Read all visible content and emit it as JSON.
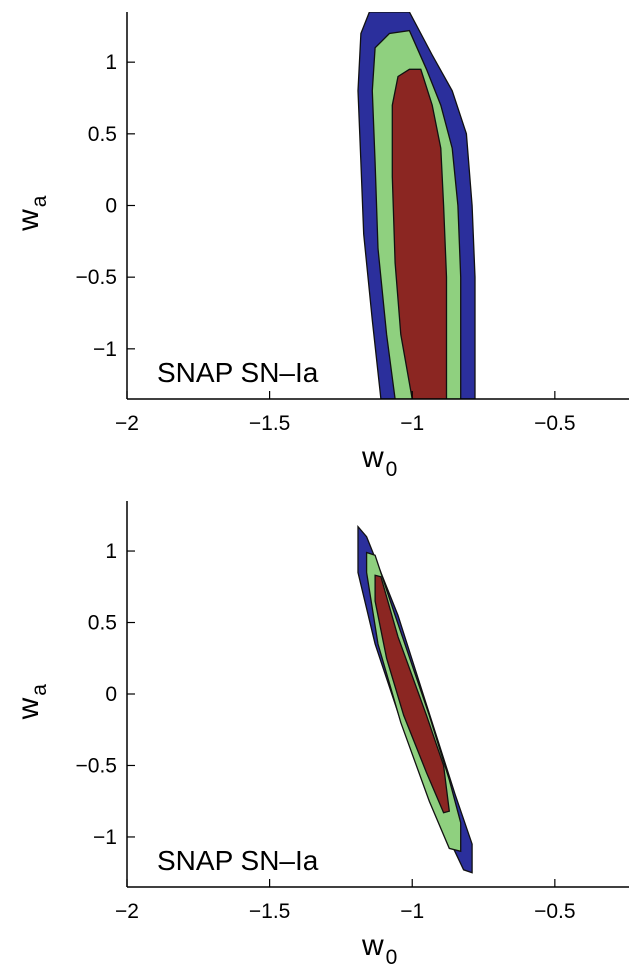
{
  "chart_data": [
    {
      "type": "contour",
      "xlabel": "w",
      "xlabel_sub": "0",
      "ylabel": "w",
      "ylabel_sub": "a",
      "xlim": [
        -2,
        -0.24
      ],
      "ylim": [
        -1.35,
        1.35
      ],
      "xticks": [
        -2,
        -1.5,
        -1,
        -0.5
      ],
      "xtick_labels": [
        "−2",
        "−1.5",
        "−1",
        "−0.5"
      ],
      "yticks": [
        1,
        0.5,
        0,
        -0.5,
        -1
      ],
      "ytick_labels": [
        "1",
        "0.5",
        "0",
        "−0.5",
        "−1"
      ],
      "annotation": "SNAP SN–Ia",
      "colors": {
        "outer": "#2b2f9c",
        "middle": "#8fd07f",
        "inner": "#8b2622",
        "edge": "#111111"
      },
      "contours": [
        {
          "level": "outer",
          "points": [
            [
              -1.11,
              -1.35
            ],
            [
              -1.14,
              -0.8
            ],
            [
              -1.17,
              -0.2
            ],
            [
              -1.18,
              0.3
            ],
            [
              -1.19,
              0.8
            ],
            [
              -1.18,
              1.2
            ],
            [
              -1.15,
              1.35
            ],
            [
              -1.01,
              1.35
            ],
            [
              -0.93,
              1.05
            ],
            [
              -0.86,
              0.8
            ],
            [
              -0.81,
              0.5
            ],
            [
              -0.79,
              0.0
            ],
            [
              -0.78,
              -0.5
            ],
            [
              -0.78,
              -1.35
            ]
          ]
        },
        {
          "level": "middle",
          "points": [
            [
              -1.06,
              -1.35
            ],
            [
              -1.09,
              -0.9
            ],
            [
              -1.12,
              -0.3
            ],
            [
              -1.13,
              0.3
            ],
            [
              -1.14,
              0.8
            ],
            [
              -1.13,
              1.1
            ],
            [
              -1.08,
              1.2
            ],
            [
              -1.01,
              1.22
            ],
            [
              -0.95,
              0.95
            ],
            [
              -0.9,
              0.7
            ],
            [
              -0.86,
              0.4
            ],
            [
              -0.84,
              0.0
            ],
            [
              -0.83,
              -0.5
            ],
            [
              -0.83,
              -1.35
            ]
          ]
        },
        {
          "level": "inner",
          "points": [
            [
              -1.0,
              -1.35
            ],
            [
              -1.04,
              -0.9
            ],
            [
              -1.06,
              -0.4
            ],
            [
              -1.07,
              0.2
            ],
            [
              -1.07,
              0.7
            ],
            [
              -1.05,
              0.9
            ],
            [
              -1.01,
              0.95
            ],
            [
              -0.97,
              0.95
            ],
            [
              -0.93,
              0.7
            ],
            [
              -0.9,
              0.4
            ],
            [
              -0.89,
              0.0
            ],
            [
              -0.88,
              -0.5
            ],
            [
              -0.88,
              -1.35
            ]
          ]
        }
      ]
    },
    {
      "type": "contour",
      "xlabel": "w",
      "xlabel_sub": "0",
      "ylabel": "w",
      "ylabel_sub": "a",
      "xlim": [
        -2,
        -0.24
      ],
      "ylim": [
        -1.35,
        1.35
      ],
      "xticks": [
        -2,
        -1.5,
        -1,
        -0.5
      ],
      "xtick_labels": [
        "−2",
        "−1.5",
        "−1",
        "−0.5"
      ],
      "yticks": [
        1,
        0.5,
        0,
        -0.5,
        -1
      ],
      "ytick_labels": [
        "1",
        "0.5",
        "0",
        "−0.5",
        "−1"
      ],
      "annotation": "SNAP SN–Ia",
      "colors": {
        "outer": "#2b2f9c",
        "middle": "#8fd07f",
        "inner": "#8b2622",
        "edge": "#111111"
      },
      "contours": [
        {
          "level": "outer",
          "points": [
            [
              -1.19,
              1.17
            ],
            [
              -1.16,
              1.1
            ],
            [
              -1.05,
              0.55
            ],
            [
              -0.93,
              -0.2
            ],
            [
              -0.85,
              -0.7
            ],
            [
              -0.79,
              -1.05
            ],
            [
              -0.79,
              -1.25
            ],
            [
              -0.82,
              -1.23
            ],
            [
              -0.91,
              -0.85
            ],
            [
              -1.03,
              -0.25
            ],
            [
              -1.13,
              0.35
            ],
            [
              -1.19,
              0.85
            ]
          ]
        },
        {
          "level": "middle",
          "points": [
            [
              -1.16,
              0.99
            ],
            [
              -1.13,
              0.97
            ],
            [
              -1.06,
              0.55
            ],
            [
              -0.94,
              -0.15
            ],
            [
              -0.87,
              -0.6
            ],
            [
              -0.83,
              -0.9
            ],
            [
              -0.83,
              -1.1
            ],
            [
              -0.87,
              -1.08
            ],
            [
              -0.94,
              -0.75
            ],
            [
              -1.04,
              -0.2
            ],
            [
              -1.12,
              0.35
            ],
            [
              -1.16,
              0.85
            ]
          ]
        },
        {
          "level": "inner",
          "points": [
            [
              -1.13,
              0.83
            ],
            [
              -1.11,
              0.82
            ],
            [
              -1.05,
              0.4
            ],
            [
              -0.95,
              -0.15
            ],
            [
              -0.89,
              -0.5
            ],
            [
              -0.87,
              -0.82
            ],
            [
              -0.89,
              -0.83
            ],
            [
              -0.95,
              -0.55
            ],
            [
              -1.03,
              -0.15
            ],
            [
              -1.09,
              0.25
            ],
            [
              -1.13,
              0.65
            ]
          ]
        }
      ]
    }
  ]
}
